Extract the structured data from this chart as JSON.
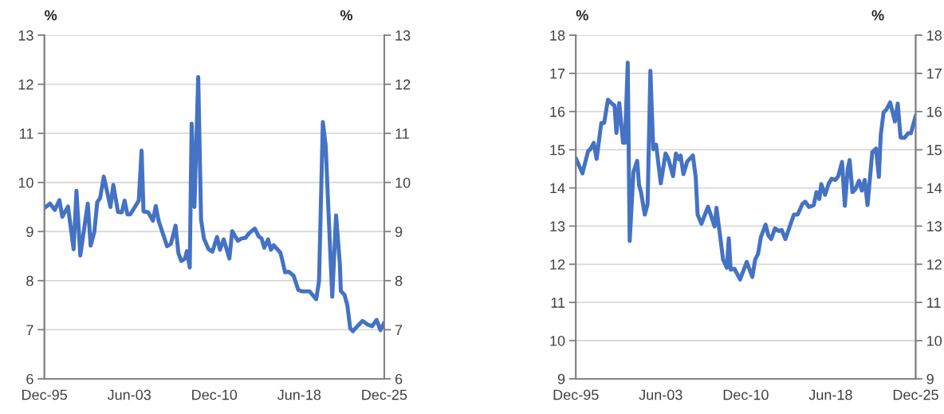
{
  "chart_data": [
    {
      "type": "line",
      "ylabel": "%",
      "y2label": "%",
      "x": [
        "1995-12",
        "1996-06",
        "1996-11",
        "1997-04",
        "1997-07",
        "1998-01",
        "1998-07",
        "1998-10",
        "1999-02",
        "1999-10",
        "2000-01",
        "2000-05",
        "2000-08",
        "2000-11",
        "2001-03",
        "2001-10",
        "2002-01",
        "2002-06",
        "2002-10",
        "2003-01",
        "2003-04",
        "2003-07",
        "2004-04",
        "2004-07",
        "2004-09",
        "2005-02",
        "2005-07",
        "2005-10",
        "2006-01",
        "2006-10",
        "2007-02",
        "2007-07",
        "2007-10",
        "2008-01",
        "2008-05",
        "2008-07",
        "2008-10",
        "2008-12",
        "2009-03",
        "2009-07",
        "2009-10",
        "2010-01",
        "2010-06",
        "2010-10",
        "2011-03",
        "2011-06",
        "2011-10",
        "2012-04",
        "2012-07",
        "2013-01",
        "2013-05",
        "2013-09",
        "2014-01",
        "2014-07",
        "2014-11",
        "2015-02",
        "2015-05",
        "2015-09",
        "2015-12",
        "2016-03",
        "2016-10",
        "2016-12",
        "2017-03",
        "2017-07",
        "2017-12",
        "2018-05",
        "2018-09",
        "2019-05",
        "2019-12",
        "2020-03",
        "2020-07",
        "2020-10",
        "2021-01",
        "2021-05",
        "2021-09",
        "2022-01",
        "2022-02",
        "2022-06",
        "2022-09",
        "2022-12",
        "2023-03",
        "2023-07",
        "2024-01",
        "2024-06",
        "2024-11",
        "2025-04",
        "2025-08",
        "2025-12"
      ],
      "series": [
        {
          "color": "#4472c4",
          "values": [
            9.48,
            9.57,
            9.44,
            9.64,
            9.3,
            9.51,
            8.64,
            9.83,
            8.51,
            9.57,
            8.71,
            9.0,
            9.6,
            9.68,
            10.12,
            9.5,
            9.95,
            9.4,
            9.39,
            9.63,
            9.35,
            9.35,
            9.63,
            10.65,
            9.41,
            9.39,
            9.22,
            9.52,
            9.22,
            8.7,
            8.75,
            9.12,
            8.56,
            8.4,
            8.45,
            8.6,
            8.27,
            11.2,
            9.5,
            12.15,
            9.24,
            8.86,
            8.64,
            8.59,
            8.89,
            8.63,
            8.84,
            8.45,
            9.01,
            8.81,
            8.86,
            8.87,
            8.97,
            9.06,
            8.9,
            8.86,
            8.67,
            8.84,
            8.63,
            8.72,
            8.57,
            8.42,
            8.17,
            8.18,
            8.1,
            7.81,
            7.78,
            7.78,
            7.62,
            7.99,
            11.23,
            10.75,
            9.38,
            7.67,
            9.33,
            8.34,
            7.79,
            7.71,
            7.49,
            7.03,
            6.97,
            7.06,
            7.18,
            7.11,
            7.07,
            7.2,
            6.99,
            7.14
          ]
        }
      ],
      "xlim": [
        "1995-12",
        "2025-12"
      ],
      "xticks": [
        {
          "value": "1995-12",
          "label": "Dec-95"
        },
        {
          "value": "2003-06",
          "label": "Jun-03"
        },
        {
          "value": "2010-12",
          "label": "Dec-10"
        },
        {
          "value": "2018-06",
          "label": "Jun-18"
        },
        {
          "value": "2025-12",
          "label": "Dec-25"
        }
      ],
      "ylim": [
        6,
        13
      ],
      "yticks": [
        6,
        7,
        8,
        9,
        10,
        11,
        12,
        13
      ],
      "y2lim": [
        6,
        13
      ],
      "y2ticks": [
        6,
        7,
        8,
        9,
        10,
        11,
        12,
        13
      ],
      "grid": "y",
      "line_style": "solid"
    },
    {
      "type": "line",
      "ylabel": "%",
      "y2label": "%",
      "x": [
        "1995-12",
        "1996-07",
        "1997-01",
        "1997-03",
        "1997-07",
        "1997-10",
        "1998-03",
        "1998-06",
        "1998-10",
        "1999-03",
        "1999-05",
        "1999-07",
        "1999-10",
        "2000-02",
        "2000-04",
        "2000-07",
        "2000-09",
        "2001-01",
        "2001-05",
        "2001-07",
        "2001-09",
        "2002-01",
        "2002-04",
        "2002-07",
        "2002-10",
        "2003-01",
        "2003-06",
        "2003-11",
        "2004-02",
        "2004-07",
        "2004-10",
        "2005-01",
        "2005-03",
        "2005-06",
        "2005-10",
        "2006-04",
        "2006-07",
        "2006-09",
        "2007-01",
        "2007-08",
        "2008-03",
        "2008-05",
        "2008-12",
        "2009-04",
        "2009-06",
        "2009-08",
        "2009-12",
        "2010-06",
        "2011-01",
        "2011-07",
        "2011-10",
        "2012-01",
        "2012-04",
        "2012-09",
        "2012-12",
        "2013-03",
        "2013-07",
        "2013-11",
        "2014-02",
        "2014-06",
        "2014-11",
        "2015-03",
        "2015-07",
        "2015-12",
        "2016-03",
        "2016-07",
        "2016-12",
        "2017-03",
        "2017-06",
        "2017-08",
        "2017-12",
        "2018-04",
        "2018-07",
        "2018-11",
        "2019-02",
        "2019-06",
        "2019-09",
        "2019-12",
        "2020-02",
        "2020-05",
        "2020-08",
        "2020-12",
        "2021-03",
        "2021-06",
        "2021-09",
        "2022-02",
        "2022-06",
        "2022-09",
        "2022-11",
        "2023-02",
        "2023-05",
        "2023-09",
        "2024-02",
        "2024-05",
        "2024-08",
        "2024-12",
        "2025-04",
        "2025-07",
        "2025-12"
      ],
      "series": [
        {
          "color": "#4472c4",
          "values": [
            14.78,
            14.38,
            14.97,
            15.0,
            15.18,
            14.76,
            15.7,
            15.7,
            16.31,
            16.19,
            16.16,
            15.44,
            16.22,
            15.18,
            15.18,
            17.28,
            12.61,
            14.42,
            14.71,
            14.07,
            13.89,
            13.3,
            13.57,
            17.07,
            15.01,
            15.13,
            14.12,
            14.9,
            14.76,
            14.31,
            14.9,
            14.75,
            14.85,
            14.36,
            14.69,
            14.85,
            14.28,
            13.3,
            13.06,
            13.51,
            12.99,
            13.48,
            12.12,
            11.91,
            12.68,
            11.86,
            11.88,
            11.6,
            12.06,
            11.67,
            12.13,
            12.27,
            12.71,
            13.04,
            12.75,
            12.66,
            12.94,
            12.87,
            12.9,
            12.66,
            13.02,
            13.3,
            13.3,
            13.58,
            13.64,
            13.5,
            13.55,
            13.89,
            13.71,
            14.1,
            13.82,
            14.12,
            14.24,
            14.21,
            14.31,
            14.68,
            13.53,
            14.49,
            14.73,
            13.89,
            13.96,
            14.19,
            13.93,
            14.21,
            13.55,
            14.94,
            15.03,
            14.29,
            15.39,
            15.98,
            16.05,
            16.24,
            15.74,
            16.21,
            15.32,
            15.31,
            15.43,
            15.43,
            15.89
          ]
        }
      ],
      "xlim": [
        "1995-12",
        "2025-12"
      ],
      "xticks": [
        {
          "value": "1995-12",
          "label": "Dec-95"
        },
        {
          "value": "2003-06",
          "label": "Jun-03"
        },
        {
          "value": "2010-12",
          "label": "Dec-10"
        },
        {
          "value": "2018-06",
          "label": "Jun-18"
        },
        {
          "value": "2025-12",
          "label": "Dec-25"
        }
      ],
      "ylim": [
        9,
        18
      ],
      "yticks": [
        9,
        10,
        11,
        12,
        13,
        14,
        15,
        16,
        17,
        18
      ],
      "y2lim": [
        9,
        18
      ],
      "y2ticks": [
        9,
        10,
        11,
        12,
        13,
        14,
        15,
        16,
        17,
        18
      ],
      "grid": "y",
      "line_style": "solid"
    }
  ]
}
